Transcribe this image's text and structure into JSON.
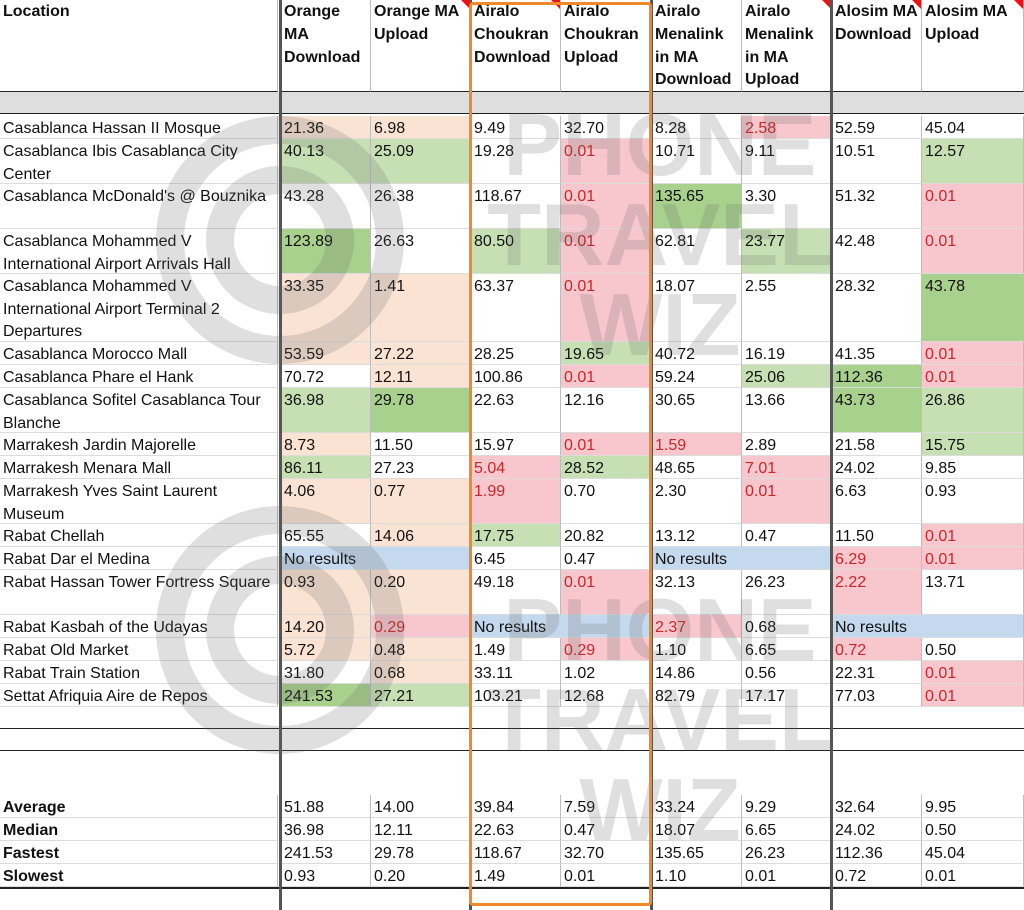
{
  "headers": {
    "location": "Location",
    "columns": [
      {
        "label": "Orange MA Download",
        "flag": false
      },
      {
        "label": "Orange MA Upload",
        "flag": true
      },
      {
        "label": "Airalo Choukran Download",
        "flag": true
      },
      {
        "label": "Airalo Choukran Upload",
        "flag": false
      },
      {
        "label": "Airalo Menalink in MA Download",
        "flag": false
      },
      {
        "label": "Airalo Menalink in MA Upload",
        "flag": true
      },
      {
        "label": "Alosim MA Download",
        "flag": true
      },
      {
        "label": "Alosim MA Upload",
        "flag": true
      }
    ]
  },
  "colors": {
    "green_dark": "#a9d18e",
    "green_light": "#c6e0b4",
    "red_light": "#f8c7cd",
    "peach": "#fbe3d4",
    "blue": "#c5d9ee",
    "none": "#ffffff",
    "highlight": "#f0892a",
    "red_text": "#c62828"
  },
  "rows": [
    {
      "location": "Casablanca Hassan II Mosque",
      "lines": 1,
      "cells": [
        {
          "v": "21.36",
          "bg": "peach"
        },
        {
          "v": "6.98",
          "bg": "peach"
        },
        {
          "v": "9.49"
        },
        {
          "v": "32.70"
        },
        {
          "v": "8.28"
        },
        {
          "v": "2.58",
          "bg": "red_light",
          "red": true
        },
        {
          "v": "52.59"
        },
        {
          "v": "45.04"
        }
      ]
    },
    {
      "location": "Casablanca Ibis Casablanca City Center",
      "lines": 2,
      "cells": [
        {
          "v": "40.13",
          "bg": "green_light"
        },
        {
          "v": "25.09",
          "bg": "green_light"
        },
        {
          "v": "19.28"
        },
        {
          "v": "0.01",
          "bg": "red_light",
          "red": true
        },
        {
          "v": "10.71"
        },
        {
          "v": "9.11"
        },
        {
          "v": "10.51"
        },
        {
          "v": "12.57",
          "bg": "green_light"
        }
      ]
    },
    {
      "location": "Casablanca McDonald's @ Bouznika",
      "lines": 2,
      "cells": [
        {
          "v": "43.28"
        },
        {
          "v": "26.38"
        },
        {
          "v": "118.67"
        },
        {
          "v": "0.01",
          "bg": "red_light",
          "red": true
        },
        {
          "v": "135.65",
          "bg": "green_dark"
        },
        {
          "v": "3.30"
        },
        {
          "v": "51.32"
        },
        {
          "v": "0.01",
          "bg": "red_light",
          "red": true
        }
      ]
    },
    {
      "location": "Casablanca Mohammed V International Airport Arrivals Hall",
      "lines": 2,
      "cells": [
        {
          "v": "123.89",
          "bg": "green_dark"
        },
        {
          "v": "26.63"
        },
        {
          "v": "80.50",
          "bg": "green_light"
        },
        {
          "v": "0.01",
          "bg": "red_light",
          "red": true
        },
        {
          "v": "62.81"
        },
        {
          "v": "23.77",
          "bg": "green_light"
        },
        {
          "v": "42.48"
        },
        {
          "v": "0.01",
          "bg": "red_light",
          "red": true
        }
      ]
    },
    {
      "location": "Casablanca Mohammed V International Airport Terminal 2 Departures",
      "lines": 3,
      "cells": [
        {
          "v": "33.35",
          "bg": "peach"
        },
        {
          "v": "1.41",
          "bg": "peach"
        },
        {
          "v": "63.37"
        },
        {
          "v": "0.01",
          "bg": "red_light",
          "red": true
        },
        {
          "v": "18.07"
        },
        {
          "v": "2.55"
        },
        {
          "v": "28.32"
        },
        {
          "v": "43.78",
          "bg": "green_dark"
        }
      ]
    },
    {
      "location": "Casablanca Morocco Mall",
      "lines": 1,
      "cells": [
        {
          "v": "53.59",
          "bg": "peach"
        },
        {
          "v": "27.22",
          "bg": "peach"
        },
        {
          "v": "28.25"
        },
        {
          "v": "19.65",
          "bg": "green_light"
        },
        {
          "v": "40.72"
        },
        {
          "v": "16.19"
        },
        {
          "v": "41.35"
        },
        {
          "v": "0.01",
          "bg": "red_light",
          "red": true
        }
      ]
    },
    {
      "location": "Casablanca Phare el Hank",
      "lines": 1,
      "cells": [
        {
          "v": "70.72"
        },
        {
          "v": "12.11",
          "bg": "peach"
        },
        {
          "v": "100.86"
        },
        {
          "v": "0.01",
          "bg": "red_light",
          "red": true
        },
        {
          "v": "59.24"
        },
        {
          "v": "25.06",
          "bg": "green_light"
        },
        {
          "v": "112.36",
          "bg": "green_dark"
        },
        {
          "v": "0.01",
          "bg": "red_light",
          "red": true
        }
      ]
    },
    {
      "location": "Casablanca Sofitel Casablanca Tour Blanche",
      "lines": 2,
      "cells": [
        {
          "v": "36.98",
          "bg": "green_light"
        },
        {
          "v": "29.78",
          "bg": "green_dark"
        },
        {
          "v": "22.63"
        },
        {
          "v": "12.16"
        },
        {
          "v": "30.65"
        },
        {
          "v": "13.66"
        },
        {
          "v": "43.73",
          "bg": "green_dark"
        },
        {
          "v": "26.86",
          "bg": "green_light"
        }
      ]
    },
    {
      "location": "Marrakesh Jardin Majorelle",
      "lines": 1,
      "cells": [
        {
          "v": "8.73",
          "bg": "peach"
        },
        {
          "v": "11.50"
        },
        {
          "v": "15.97"
        },
        {
          "v": "0.01",
          "bg": "red_light",
          "red": true
        },
        {
          "v": "1.59",
          "bg": "red_light",
          "red": true
        },
        {
          "v": "2.89"
        },
        {
          "v": "21.58"
        },
        {
          "v": "15.75",
          "bg": "green_light"
        }
      ]
    },
    {
      "location": "Marrakesh Menara Mall",
      "lines": 1,
      "cells": [
        {
          "v": "86.11",
          "bg": "green_light"
        },
        {
          "v": "27.23"
        },
        {
          "v": "5.04",
          "bg": "red_light",
          "red": true
        },
        {
          "v": "28.52",
          "bg": "green_light"
        },
        {
          "v": "48.65"
        },
        {
          "v": "7.01",
          "bg": "red_light",
          "red": true
        },
        {
          "v": "24.02"
        },
        {
          "v": "9.85"
        }
      ]
    },
    {
      "location": "Marrakesh Yves Saint Laurent Museum",
      "lines": 2,
      "cells": [
        {
          "v": "4.06",
          "bg": "peach"
        },
        {
          "v": "0.77",
          "bg": "peach"
        },
        {
          "v": "1.99",
          "bg": "red_light",
          "red": true
        },
        {
          "v": "0.70"
        },
        {
          "v": "2.30"
        },
        {
          "v": "0.01",
          "bg": "red_light",
          "red": true
        },
        {
          "v": "6.63"
        },
        {
          "v": "0.93"
        }
      ]
    },
    {
      "location": "Rabat Chellah",
      "lines": 1,
      "cells": [
        {
          "v": "65.55"
        },
        {
          "v": "14.06",
          "bg": "peach"
        },
        {
          "v": "17.75",
          "bg": "green_light"
        },
        {
          "v": "20.82"
        },
        {
          "v": "13.12"
        },
        {
          "v": "0.47"
        },
        {
          "v": "11.50"
        },
        {
          "v": "0.01",
          "bg": "red_light",
          "red": true
        }
      ]
    },
    {
      "location": "Rabat Dar el Medina",
      "lines": 1,
      "no_results": [
        0,
        4
      ],
      "cells": [
        {
          "v": "No results",
          "bg": "blue",
          "span": 2
        },
        {
          "skip": true
        },
        {
          "v": "6.45"
        },
        {
          "v": "0.47"
        },
        {
          "v": "No results",
          "bg": "blue",
          "span": 2
        },
        {
          "skip": true
        },
        {
          "v": "6.29",
          "bg": "red_light",
          "red": true
        },
        {
          "v": "0.01",
          "bg": "red_light",
          "red": true
        }
      ]
    },
    {
      "location": "Rabat Hassan Tower Fortress Square",
      "lines": 2,
      "cells": [
        {
          "v": "0.93",
          "bg": "peach"
        },
        {
          "v": "0.20",
          "bg": "peach"
        },
        {
          "v": "49.18"
        },
        {
          "v": "0.01",
          "bg": "red_light",
          "red": true
        },
        {
          "v": "32.13"
        },
        {
          "v": "26.23"
        },
        {
          "v": "2.22",
          "bg": "red_light",
          "red": true
        },
        {
          "v": "13.71"
        }
      ]
    },
    {
      "location": "Rabat Kasbah of the Udayas",
      "lines": 1,
      "cells": [
        {
          "v": "14.20",
          "bg": "peach"
        },
        {
          "v": "0.29",
          "bg": "red_light",
          "red": true
        },
        {
          "v": "No results",
          "bg": "blue",
          "span": 2
        },
        {
          "skip": true
        },
        {
          "v": "2.37",
          "bg": "red_light",
          "red": true
        },
        {
          "v": "0.68"
        },
        {
          "v": "No results",
          "bg": "blue",
          "span": 2
        },
        {
          "skip": true
        }
      ]
    },
    {
      "location": "Rabat Old Market",
      "lines": 1,
      "cells": [
        {
          "v": "5.72",
          "bg": "peach"
        },
        {
          "v": "0.48",
          "bg": "peach"
        },
        {
          "v": "1.49"
        },
        {
          "v": "0.29",
          "bg": "red_light",
          "red": true
        },
        {
          "v": "1.10"
        },
        {
          "v": "6.65"
        },
        {
          "v": "0.72",
          "bg": "red_light",
          "red": true
        },
        {
          "v": "0.50"
        }
      ]
    },
    {
      "location": "Rabat Train Station",
      "lines": 1,
      "cells": [
        {
          "v": "31.80"
        },
        {
          "v": "0.68",
          "bg": "peach"
        },
        {
          "v": "33.11"
        },
        {
          "v": "1.02"
        },
        {
          "v": "14.86"
        },
        {
          "v": "0.56"
        },
        {
          "v": "22.31"
        },
        {
          "v": "0.01",
          "bg": "red_light",
          "red": true
        }
      ]
    },
    {
      "location": "Settat Afriquia Aire de Repos",
      "lines": 1,
      "cells": [
        {
          "v": "241.53",
          "bg": "green_dark"
        },
        {
          "v": "27.21",
          "bg": "green_light"
        },
        {
          "v": "103.21"
        },
        {
          "v": "12.68"
        },
        {
          "v": "82.79"
        },
        {
          "v": "17.17"
        },
        {
          "v": "77.03"
        },
        {
          "v": "0.01",
          "bg": "red_light",
          "red": true
        }
      ]
    }
  ],
  "summary": [
    {
      "label": "Average",
      "values": [
        "51.88",
        "14.00",
        "39.84",
        "7.59",
        "33.24",
        "9.29",
        "32.64",
        "9.95"
      ]
    },
    {
      "label": "Median",
      "values": [
        "36.98",
        "12.11",
        "22.63",
        "0.47",
        "18.07",
        "6.65",
        "24.02",
        "0.50"
      ]
    },
    {
      "label": "Fastest",
      "values": [
        "241.53",
        "29.78",
        "118.67",
        "32.70",
        "135.65",
        "26.23",
        "112.36",
        "45.04"
      ]
    },
    {
      "label": "Slowest",
      "values": [
        "0.93",
        "0.20",
        "1.49",
        "0.01",
        "1.10",
        "0.01",
        "0.72",
        "0.01"
      ]
    }
  ],
  "watermark": {
    "lines": [
      "PHONE",
      "TRAVEL",
      "WIZ"
    ]
  }
}
